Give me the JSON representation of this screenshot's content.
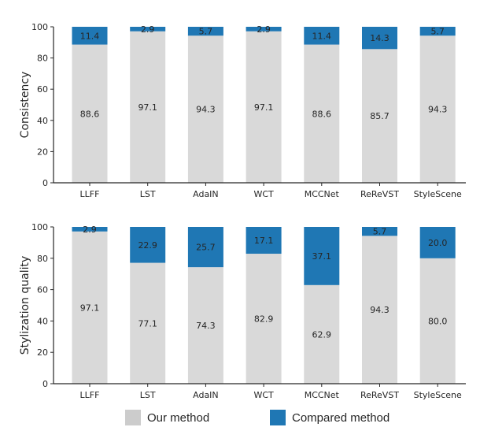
{
  "colors": {
    "ours": "#d9d9d9",
    "compared": "#1f77b4",
    "ours_legend": "#cccccc",
    "axis": "#262626"
  },
  "legend": {
    "items": [
      {
        "label": "Our method",
        "series": "ours"
      },
      {
        "label": "Compared method",
        "series": "compared"
      }
    ],
    "placement": "bottom-center"
  },
  "chart_data": [
    {
      "type": "bar",
      "stacked": true,
      "title": "",
      "xlabel": "",
      "ylabel": "Consistency",
      "ylim": [
        0,
        100
      ],
      "yticks": [
        0,
        20,
        40,
        60,
        80,
        100
      ],
      "grid": false,
      "categories": [
        "LLFF",
        "LST",
        "AdaIN",
        "WCT",
        "MCCNet",
        "ReReVST",
        "StyleScene"
      ],
      "series": [
        {
          "name": "Our method",
          "key": "ours",
          "values": [
            88.6,
            97.1,
            94.3,
            97.1,
            88.6,
            85.7,
            94.3
          ]
        },
        {
          "name": "Compared method",
          "key": "compared",
          "values": [
            11.4,
            2.9,
            5.7,
            2.9,
            11.4,
            14.3,
            5.7
          ]
        }
      ]
    },
    {
      "type": "bar",
      "stacked": true,
      "title": "",
      "xlabel": "",
      "ylabel": "Stylization quality",
      "ylim": [
        0,
        100
      ],
      "yticks": [
        0,
        20,
        40,
        60,
        80,
        100
      ],
      "grid": false,
      "categories": [
        "LLFF",
        "LST",
        "AdaIN",
        "WCT",
        "MCCNet",
        "ReReVST",
        "StyleScene"
      ],
      "series": [
        {
          "name": "Our method",
          "key": "ours",
          "values": [
            97.1,
            77.1,
            74.3,
            82.9,
            62.9,
            94.3,
            80.0
          ]
        },
        {
          "name": "Compared method",
          "key": "compared",
          "values": [
            2.9,
            22.9,
            25.7,
            17.1,
            37.1,
            5.7,
            20.0
          ]
        }
      ]
    }
  ]
}
